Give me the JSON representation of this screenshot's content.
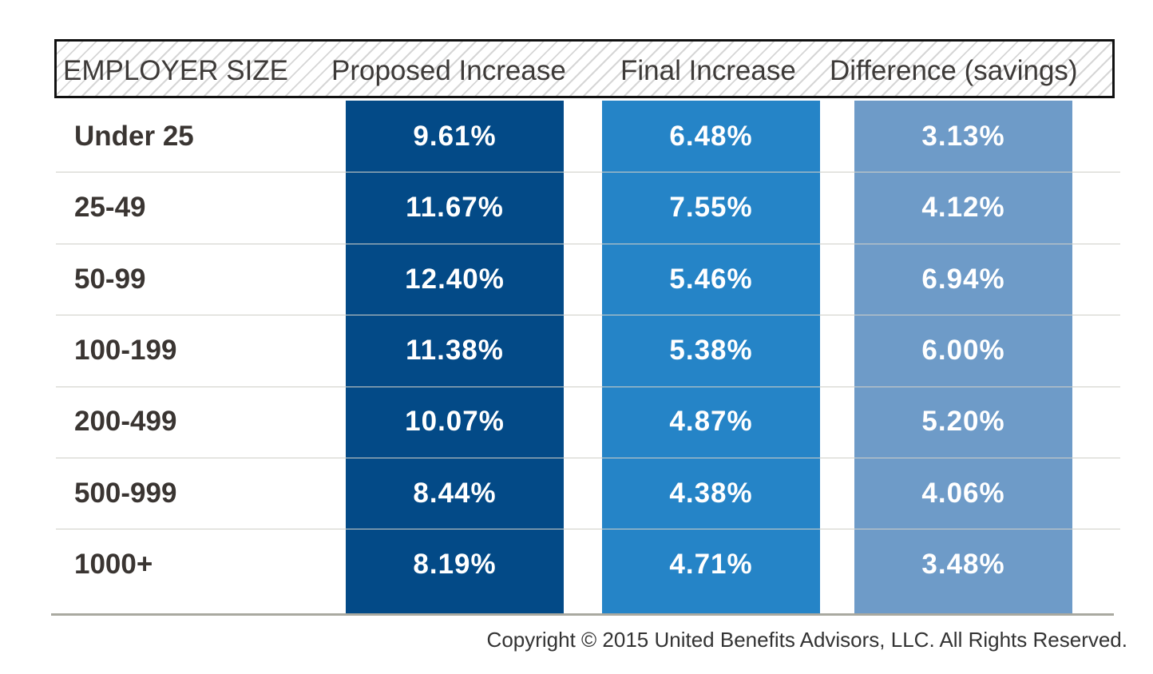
{
  "colors": {
    "proposed": "#034a87",
    "final": "#2584c7",
    "difference": "#6e9bc8"
  },
  "chart_data": {
    "type": "table",
    "columns": [
      "EMPLOYER SIZE",
      "Proposed Increase",
      "Final Increase",
      "Difference (savings)"
    ],
    "rows": [
      {
        "size": "Under 25",
        "proposed": "9.61%",
        "final": "6.48%",
        "difference": "3.13%"
      },
      {
        "size": "25-49",
        "proposed": "11.67%",
        "final": "7.55%",
        "difference": "4.12%"
      },
      {
        "size": "50-99",
        "proposed": "12.40%",
        "final": "5.46%",
        "difference": "6.94%"
      },
      {
        "size": "100-199",
        "proposed": "11.38%",
        "final": "5.38%",
        "difference": "6.00%"
      },
      {
        "size": "200-499",
        "proposed": "10.07%",
        "final": "4.87%",
        "difference": "5.20%"
      },
      {
        "size": "500-999",
        "proposed": "8.44%",
        "final": "4.38%",
        "difference": "4.06%"
      },
      {
        "size": "1000+",
        "proposed": "8.19%",
        "final": "4.71%",
        "difference": "3.48%"
      }
    ]
  },
  "footer": {
    "copyright": "Copyright © 2015 United Benefits Advisors, LLC. All Rights Reserved."
  }
}
